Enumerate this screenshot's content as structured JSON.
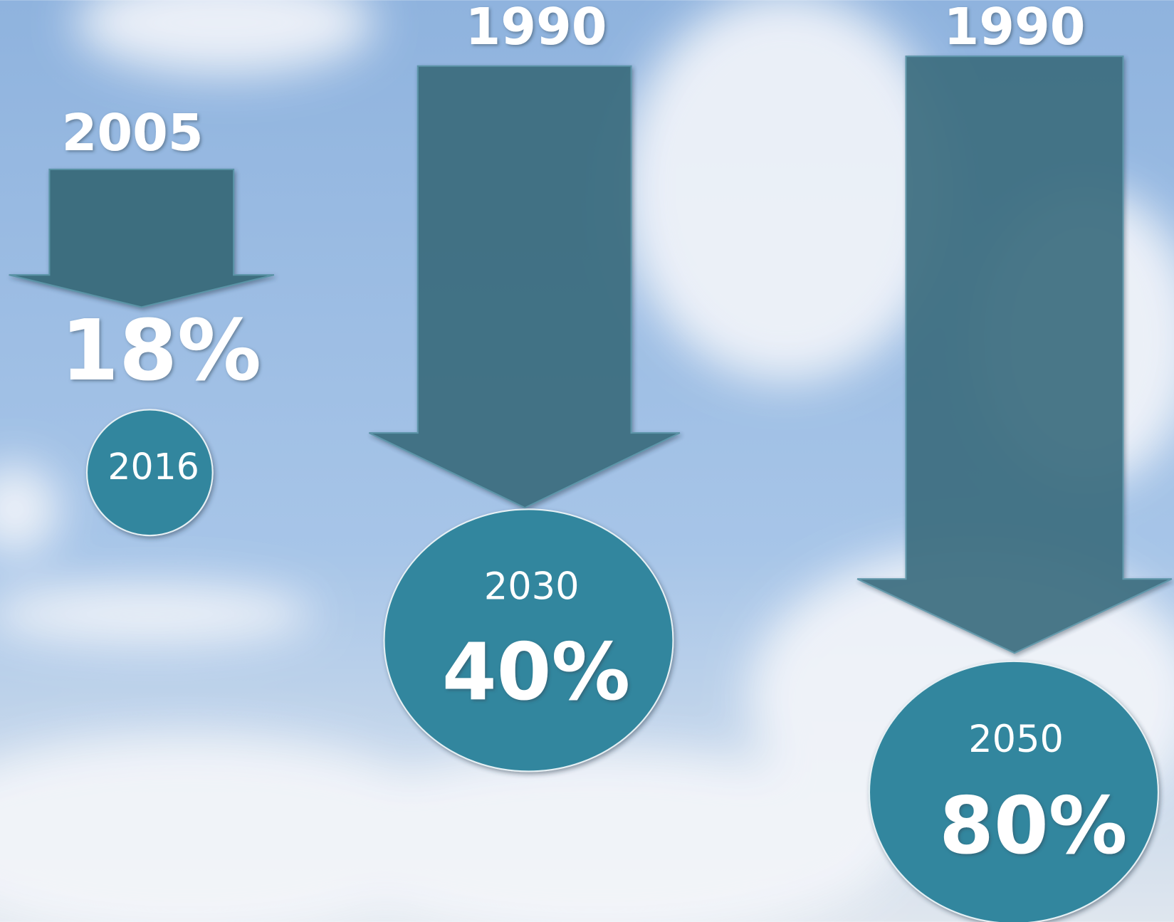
{
  "items": [
    {
      "from": "2005",
      "change": "18%",
      "to": "2016"
    },
    {
      "from": "1990",
      "change": "40%",
      "to": "2030"
    },
    {
      "from": "1990",
      "change": "80%",
      "to": "2050"
    }
  ]
}
